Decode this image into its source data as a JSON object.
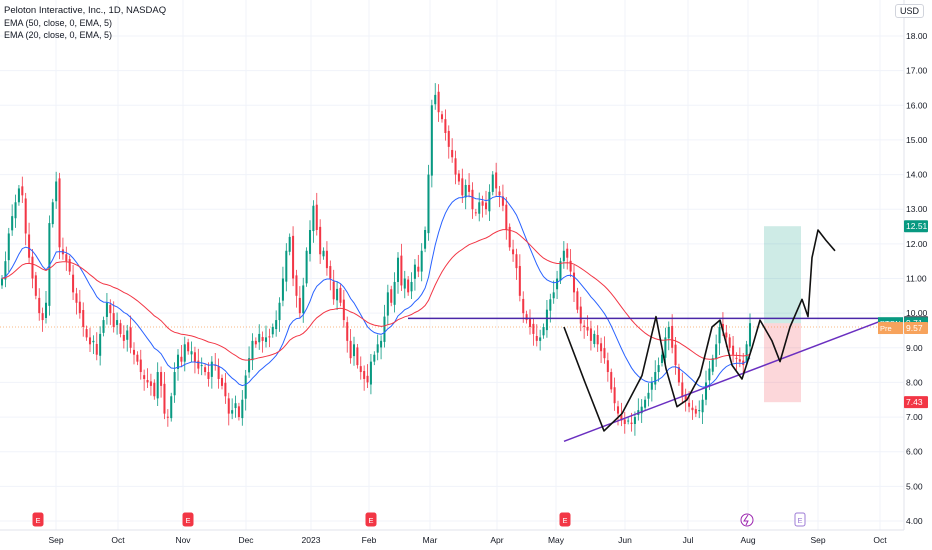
{
  "header": {
    "title": "Peloton Interactive, Inc., 1D, NASDAQ",
    "indicators": [
      "EMA (50, close, 0, EMA, 5)",
      "EMA (20, close, 0, EMA, 5)"
    ],
    "currency": "USD"
  },
  "chart_data": {
    "type": "candlestick",
    "symbol": "PTON",
    "ylim": [
      4,
      18
    ],
    "yticks": [
      4,
      5,
      6,
      7,
      8,
      9,
      10,
      11,
      12,
      13,
      14,
      15,
      16,
      17,
      18
    ],
    "xticks": [
      "Sep",
      "Oct",
      "Nov",
      "Dec",
      "2023",
      "Feb",
      "Mar",
      "Apr",
      "May",
      "Jun",
      "Jul",
      "Aug",
      "Sep",
      "Oct"
    ],
    "price_labels": [
      {
        "text": "12.51",
        "value": 12.51,
        "color": "#089981"
      },
      {
        "text": "9.74",
        "value": 9.74,
        "color": "#50535e"
      },
      {
        "text": "9.71",
        "value": 9.71,
        "color": "#089981",
        "tag": "PTON"
      },
      {
        "text": "9.57",
        "value": 9.57,
        "color": "#f7a35c",
        "tag": "Pre"
      },
      {
        "text": "7.43",
        "value": 7.43,
        "color": "#f23645"
      }
    ],
    "earnings_markers": [
      "E",
      "E",
      "E",
      "E",
      "E"
    ],
    "closes": [
      11.0,
      11.5,
      12.3,
      12.8,
      13.2,
      13.6,
      13.4,
      12.3,
      11.6,
      11.0,
      10.5,
      10.0,
      9.8,
      10.3,
      12.6,
      13.2,
      13.8,
      11.9,
      11.7,
      11.5,
      11.2,
      10.6,
      10.3,
      10.0,
      9.6,
      9.3,
      9.1,
      9.2,
      8.8,
      9.4,
      9.8,
      10.3,
      10.0,
      9.6,
      9.8,
      9.4,
      9.2,
      9.5,
      9.0,
      8.8,
      8.6,
      8.3,
      8.1,
      8.0,
      7.9,
      7.6,
      8.3,
      7.9,
      7.1,
      7.0,
      7.6,
      8.3,
      8.8,
      8.6,
      9.1,
      8.9,
      8.9,
      8.6,
      8.4,
      8.5,
      8.3,
      8.1,
      8.6,
      8.5,
      8.1,
      7.9,
      7.6,
      7.1,
      7.2,
      7.4,
      7.0,
      7.5,
      8.2,
      8.7,
      9.2,
      9.1,
      9.4,
      9.2,
      9.3,
      9.3,
      9.6,
      9.8,
      10.3,
      11.0,
      11.8,
      12.2,
      11.0,
      10.5,
      10.0,
      10.8,
      11.8,
      12.4,
      13.1,
      12.4,
      11.7,
      11.8,
      11.3,
      11.0,
      10.4,
      10.7,
      10.3,
      9.8,
      9.2,
      8.7,
      9.1,
      8.5,
      8.3,
      8.1,
      8.0,
      8.6,
      8.8,
      9.1,
      9.2,
      9.9,
      10.6,
      10.3,
      10.9,
      11.6,
      10.8,
      11.0,
      10.6,
      10.9,
      11.4,
      11.2,
      11.8,
      12.4,
      14.0,
      16.0,
      16.3,
      15.8,
      15.6,
      15.2,
      14.8,
      14.5,
      14.0,
      13.8,
      13.4,
      13.7,
      13.5,
      13.0,
      12.9,
      13.2,
      13.1,
      13.0,
      13.5,
      14.0,
      13.6,
      13.4,
      13.1,
      12.4,
      11.9,
      11.7,
      11.3,
      10.5,
      10.0,
      9.8,
      9.6,
      9.4,
      9.2,
      9.3,
      9.6,
      10.1,
      10.4,
      10.6,
      11.0,
      11.5,
      11.8,
      11.6,
      11.2,
      10.6,
      10.1,
      9.7,
      9.6,
      9.5,
      9.2,
      9.4,
      9.1,
      8.9,
      8.7,
      8.3,
      7.8,
      7.4,
      7.1,
      6.9,
      6.8,
      6.9,
      6.8,
      7.0,
      7.2,
      7.3,
      7.5,
      7.7,
      8.0,
      8.3,
      8.5,
      8.8,
      9.3,
      9.6,
      9.0,
      8.5,
      8.0,
      7.6,
      7.5,
      7.3,
      7.2,
      7.1,
      7.2,
      7.5,
      8.0,
      8.4,
      8.7,
      9.1,
      9.6,
      9.5,
      9.3,
      9.0,
      8.8,
      8.7,
      8.6,
      8.5,
      9.1,
      9.71
    ]
  }
}
